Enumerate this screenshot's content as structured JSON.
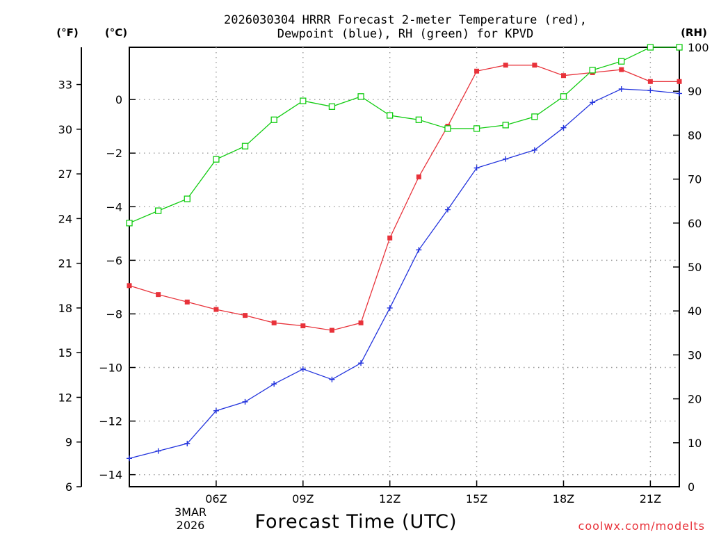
{
  "title_line1": "2026030304 HRRR Forecast 2-meter Temperature (red),",
  "title_line2": "Dewpoint (blue), RH (green) for KPVD",
  "unit_left_f": "(°F)",
  "unit_left_c": "(°C)",
  "unit_right": "(RH)",
  "xlabel": "Forecast Time (UTC)",
  "date_line1": "3MAR",
  "date_line2": "2026",
  "credit": "coolwx.com/modelts",
  "colors": {
    "temp": "#e8323a",
    "dew": "#2233dd",
    "rh": "#11cc11",
    "grid": "#9a9a9a"
  },
  "chart_data": {
    "type": "line",
    "x_hours": [
      3,
      4,
      5,
      6,
      7,
      8,
      9,
      10,
      11,
      12,
      13,
      14,
      15,
      16,
      17,
      18,
      19,
      20,
      21,
      22
    ],
    "xlim": [
      3,
      22
    ],
    "x_ticks": [
      {
        "hour": 6,
        "label": "06Z"
      },
      {
        "hour": 9,
        "label": "09Z"
      },
      {
        "hour": 12,
        "label": "12Z"
      },
      {
        "hour": 15,
        "label": "15Z"
      },
      {
        "hour": 18,
        "label": "18Z"
      },
      {
        "hour": 21,
        "label": "21Z"
      }
    ],
    "y_left_f": {
      "label": "(°F)",
      "ticks": [
        6,
        9,
        12,
        15,
        18,
        21,
        24,
        27,
        30,
        33
      ],
      "range": [
        6,
        35.5
      ]
    },
    "y_left_c": {
      "label": "(°C)",
      "ticks": [
        0,
        -2,
        -4,
        -6,
        -8,
        -10,
        -12,
        -14
      ],
      "range": [
        -14.45,
        1.95
      ]
    },
    "y_right": {
      "label": "(RH)",
      "ticks": [
        0,
        10,
        20,
        30,
        40,
        50,
        60,
        70,
        80,
        90,
        100
      ],
      "range": [
        0,
        100
      ]
    },
    "series": [
      {
        "name": "Temperature (red)",
        "unit": "F",
        "marker": "square-filled",
        "values": [
          19.5,
          18.9,
          18.4,
          17.9,
          17.5,
          17.0,
          16.8,
          16.5,
          17.0,
          22.7,
          26.8,
          30.2,
          33.9,
          34.3,
          34.3,
          33.6,
          33.8,
          34.0,
          33.2,
          33.2
        ]
      },
      {
        "name": "Dewpoint (blue)",
        "unit": "F",
        "marker": "plus",
        "values": [
          7.9,
          8.4,
          8.9,
          11.1,
          11.7,
          12.9,
          13.9,
          13.2,
          14.3,
          18.0,
          21.9,
          24.6,
          27.4,
          28.0,
          28.6,
          30.1,
          31.8,
          32.7,
          32.6,
          32.4
        ]
      },
      {
        "name": "RH (green)",
        "unit": "%",
        "marker": "square-open",
        "values": [
          60.0,
          62.8,
          65.5,
          74.5,
          77.5,
          83.5,
          87.8,
          86.5,
          88.8,
          84.5,
          83.5,
          81.5,
          81.5,
          82.3,
          84.2,
          88.8,
          94.8,
          96.8,
          100.0,
          100.0
        ]
      }
    ]
  }
}
